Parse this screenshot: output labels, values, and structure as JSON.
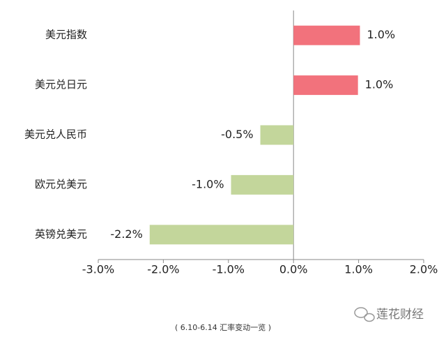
{
  "chart_data": {
    "type": "hbar",
    "categories": [
      "美元指数",
      "美元兑日元",
      "美元兑人民币",
      "欧元兑美元",
      "英镑兑美元"
    ],
    "values": [
      1.02,
      0.99,
      -0.51,
      -0.96,
      -2.21
    ],
    "value_labels": [
      "1.0%",
      "1.0%",
      "-0.5%",
      "-1.0%",
      "-2.2%"
    ],
    "colors": [
      "#f2727c",
      "#f2727c",
      "#c3d69b",
      "#c3d69b",
      "#c3d69b"
    ],
    "xlim": [
      -3,
      2
    ],
    "xticks": [
      {
        "value": -3,
        "label": "-3.0%"
      },
      {
        "value": -2,
        "label": "-2.0%"
      },
      {
        "value": -1,
        "label": "-1.0%"
      },
      {
        "value": 0,
        "label": "0.0%"
      },
      {
        "value": 1,
        "label": "1.0%"
      },
      {
        "value": 2,
        "label": "2.0%"
      }
    ],
    "caption": "( 6.10-6.14 汇率变动一览 )",
    "watermark": "莲花财经"
  }
}
